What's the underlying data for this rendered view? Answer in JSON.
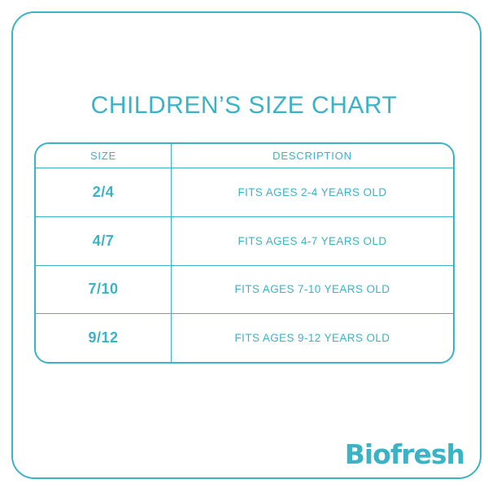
{
  "title": "CHILDREN’S SIZE CHART",
  "table": {
    "headers": [
      "SIZE",
      "DESCRIPTION"
    ],
    "rows": [
      {
        "size": "2/4",
        "description": "FITS AGES 2-4 YEARS OLD"
      },
      {
        "size": "4/7",
        "description": "FITS AGES 4-7 YEARS OLD"
      },
      {
        "size": "7/10",
        "description": "FITS AGES 7-10 YEARS OLD"
      },
      {
        "size": "9/12",
        "description": "FITS AGES 9-12 YEARS OLD"
      }
    ]
  },
  "brand": {
    "logo_text": "Biofresh"
  },
  "colors": {
    "accent": "#3bb3c5",
    "background": "#ffffff"
  }
}
